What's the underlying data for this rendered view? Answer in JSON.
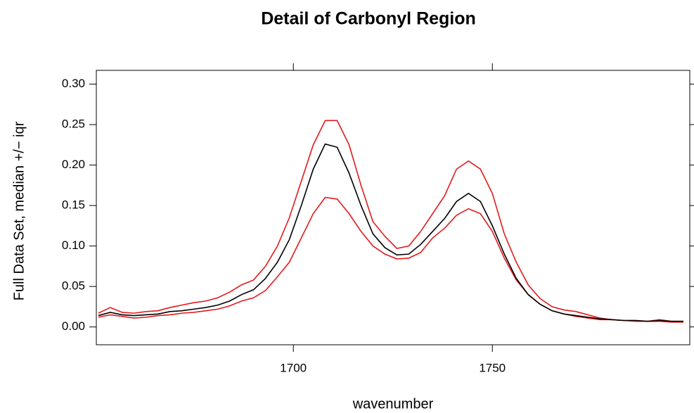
{
  "chart_data": {
    "type": "line",
    "title": "Detail of Carbonyl Region",
    "xlabel": "wavenumber",
    "ylabel": "Full Data Set, median +/− iqr",
    "x": [
      1651,
      1654,
      1657,
      1660,
      1663,
      1666,
      1669,
      1672,
      1675,
      1678,
      1681,
      1684,
      1687,
      1690,
      1693,
      1696,
      1699,
      1702,
      1705,
      1708,
      1711,
      1714,
      1717,
      1720,
      1723,
      1726,
      1729,
      1732,
      1735,
      1738,
      1741,
      1744,
      1747,
      1750,
      1753,
      1756,
      1759,
      1762,
      1765,
      1768,
      1771,
      1774,
      1777,
      1780,
      1783,
      1786,
      1789,
      1792,
      1795,
      1798
    ],
    "series": [
      {
        "color": "#e41a1c",
        "values": [
          0.012,
          0.015,
          0.013,
          0.011,
          0.012,
          0.014,
          0.015,
          0.017,
          0.018,
          0.02,
          0.022,
          0.026,
          0.032,
          0.036,
          0.045,
          0.062,
          0.08,
          0.11,
          0.14,
          0.16,
          0.158,
          0.14,
          0.118,
          0.1,
          0.09,
          0.084,
          0.085,
          0.092,
          0.11,
          0.122,
          0.138,
          0.146,
          0.14,
          0.118,
          0.085,
          0.058,
          0.04,
          0.028,
          0.02,
          0.016,
          0.013,
          0.011,
          0.009,
          0.009,
          0.008,
          0.007,
          0.007,
          0.007,
          0.006,
          0.006
        ]
      },
      {
        "color": "#e41a1c",
        "values": [
          0.017,
          0.024,
          0.018,
          0.017,
          0.019,
          0.02,
          0.024,
          0.027,
          0.03,
          0.032,
          0.036,
          0.043,
          0.052,
          0.058,
          0.075,
          0.1,
          0.135,
          0.18,
          0.225,
          0.255,
          0.255,
          0.225,
          0.175,
          0.13,
          0.112,
          0.097,
          0.1,
          0.118,
          0.14,
          0.162,
          0.195,
          0.205,
          0.195,
          0.165,
          0.115,
          0.08,
          0.052,
          0.035,
          0.025,
          0.021,
          0.019,
          0.015,
          0.011,
          0.009,
          0.008,
          0.008,
          0.007,
          0.009,
          0.007,
          0.007
        ]
      },
      {
        "color": "#000000",
        "values": [
          0.014,
          0.018,
          0.015,
          0.014,
          0.015,
          0.016,
          0.019,
          0.02,
          0.022,
          0.024,
          0.027,
          0.032,
          0.04,
          0.046,
          0.06,
          0.08,
          0.108,
          0.15,
          0.195,
          0.226,
          0.222,
          0.19,
          0.15,
          0.115,
          0.098,
          0.089,
          0.09,
          0.102,
          0.118,
          0.134,
          0.155,
          0.165,
          0.155,
          0.125,
          0.09,
          0.06,
          0.04,
          0.028,
          0.02,
          0.016,
          0.014,
          0.012,
          0.01,
          0.009,
          0.008,
          0.008,
          0.007,
          0.008,
          0.007,
          0.007
        ]
      }
    ],
    "xlim": [
      1650.5,
      1799.6
    ],
    "ylim": [
      -0.022,
      0.317
    ],
    "xticks": [
      1700,
      1750
    ],
    "yticks": [
      {
        "value": 0,
        "label": "0.00"
      },
      {
        "value": 0.05,
        "label": "0.05"
      },
      {
        "value": 0.1,
        "label": "0.10"
      },
      {
        "value": 0.15,
        "label": "0.15"
      },
      {
        "value": 0.2,
        "label": "0.20"
      },
      {
        "value": 0.25,
        "label": "0.25"
      },
      {
        "value": 0.3,
        "label": "0.30"
      }
    ],
    "grid": false
  }
}
